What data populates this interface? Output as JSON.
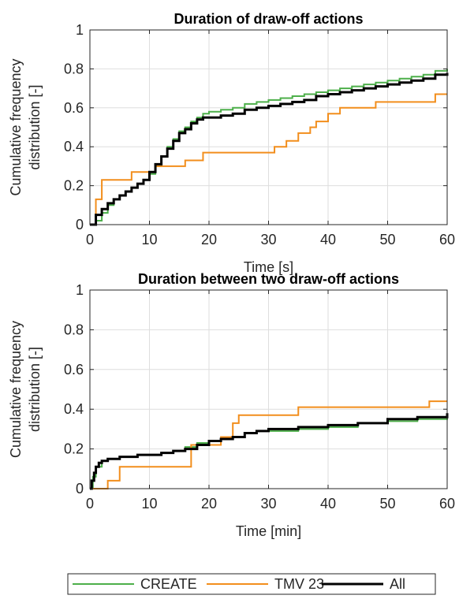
{
  "chart_data": [
    {
      "type": "line",
      "title": "Duration of draw-off actions",
      "xlabel": "Time [s]",
      "ylabel": "Cumulative frequency distribution [-]",
      "xlim": [
        0,
        60
      ],
      "ylim": [
        0,
        1
      ],
      "xticks": [
        "0",
        "10",
        "20",
        "30",
        "40",
        "50",
        "60"
      ],
      "yticks": [
        "0",
        "0.2",
        "0.4",
        "0.6",
        "0.8",
        "1"
      ],
      "grid": true,
      "series": [
        {
          "name": "CREATE",
          "color": "#4daf4a",
          "x": [
            0,
            1,
            2,
            3,
            4,
            5,
            6,
            7,
            8,
            9,
            10,
            11,
            12,
            13,
            14,
            15,
            16,
            17,
            18,
            19,
            20,
            22,
            24,
            26,
            28,
            30,
            32,
            34,
            36,
            38,
            40,
            42,
            44,
            46,
            48,
            50,
            52,
            54,
            56,
            58,
            60
          ],
          "y": [
            0,
            0.02,
            0.06,
            0.1,
            0.13,
            0.15,
            0.17,
            0.19,
            0.21,
            0.23,
            0.26,
            0.3,
            0.35,
            0.4,
            0.44,
            0.48,
            0.5,
            0.53,
            0.55,
            0.57,
            0.58,
            0.59,
            0.6,
            0.62,
            0.63,
            0.64,
            0.65,
            0.66,
            0.67,
            0.68,
            0.69,
            0.7,
            0.71,
            0.72,
            0.73,
            0.74,
            0.75,
            0.76,
            0.77,
            0.79,
            0.8
          ]
        },
        {
          "name": "TMV 23",
          "color": "#f28e1c",
          "x": [
            0,
            1,
            2,
            5,
            7,
            9,
            11,
            14,
            16,
            18,
            19,
            24,
            29,
            31,
            33,
            35,
            37,
            38,
            40,
            42,
            44,
            46,
            48,
            52,
            55,
            58,
            60
          ],
          "y": [
            0,
            0.13,
            0.23,
            0.23,
            0.27,
            0.27,
            0.3,
            0.3,
            0.33,
            0.33,
            0.37,
            0.37,
            0.37,
            0.4,
            0.43,
            0.47,
            0.5,
            0.53,
            0.57,
            0.6,
            0.6,
            0.6,
            0.63,
            0.63,
            0.63,
            0.67,
            0.67
          ]
        },
        {
          "name": "All",
          "color": "#000000",
          "x": [
            0,
            1,
            2,
            3,
            4,
            5,
            6,
            7,
            8,
            9,
            10,
            11,
            12,
            13,
            14,
            15,
            16,
            17,
            18,
            19,
            20,
            22,
            24,
            26,
            28,
            30,
            32,
            34,
            36,
            38,
            40,
            42,
            44,
            46,
            48,
            50,
            52,
            54,
            56,
            58,
            60
          ],
          "y": [
            0,
            0.05,
            0.08,
            0.11,
            0.13,
            0.15,
            0.17,
            0.19,
            0.21,
            0.23,
            0.27,
            0.31,
            0.35,
            0.39,
            0.43,
            0.47,
            0.49,
            0.52,
            0.54,
            0.55,
            0.55,
            0.56,
            0.57,
            0.59,
            0.6,
            0.61,
            0.62,
            0.63,
            0.64,
            0.66,
            0.67,
            0.68,
            0.69,
            0.7,
            0.71,
            0.72,
            0.73,
            0.74,
            0.75,
            0.77,
            0.78
          ]
        }
      ]
    },
    {
      "type": "line",
      "title": "Duration between two draw-off actions",
      "xlabel": "Time [min]",
      "ylabel": "Cumulative frequency distribution [-]",
      "xlim": [
        0,
        60
      ],
      "ylim": [
        0,
        1
      ],
      "xticks": [
        "0",
        "10",
        "20",
        "30",
        "40",
        "50",
        "60"
      ],
      "yticks": [
        "0",
        "0.2",
        "0.4",
        "0.6",
        "0.8",
        "1"
      ],
      "grid": true,
      "series": [
        {
          "name": "CREATE",
          "color": "#4daf4a",
          "x": [
            0,
            0.5,
            1,
            2,
            3,
            5,
            8,
            10,
            12,
            14,
            16,
            18,
            20,
            22,
            24,
            26,
            28,
            30,
            35,
            40,
            45,
            50,
            55,
            60
          ],
          "y": [
            0,
            0.06,
            0.11,
            0.14,
            0.15,
            0.16,
            0.17,
            0.17,
            0.18,
            0.19,
            0.21,
            0.23,
            0.24,
            0.25,
            0.26,
            0.28,
            0.29,
            0.29,
            0.3,
            0.31,
            0.33,
            0.34,
            0.35,
            0.37
          ]
        },
        {
          "name": "TMV 23",
          "color": "#f28e1c",
          "x": [
            0,
            2,
            3,
            4,
            5,
            16,
            17,
            20,
            22,
            24,
            25,
            30,
            35,
            40,
            45,
            50,
            56,
            57,
            60
          ],
          "y": [
            0,
            0,
            0.04,
            0.04,
            0.11,
            0.11,
            0.22,
            0.22,
            0.26,
            0.33,
            0.37,
            0.37,
            0.41,
            0.41,
            0.41,
            0.41,
            0.41,
            0.44,
            0.44
          ]
        },
        {
          "name": "All",
          "color": "#000000",
          "x": [
            0,
            0.3,
            0.7,
            1,
            1.5,
            2,
            3,
            5,
            8,
            10,
            12,
            14,
            16,
            18,
            20,
            22,
            24,
            26,
            28,
            30,
            35,
            40,
            45,
            50,
            55,
            60
          ],
          "y": [
            0,
            0.04,
            0.08,
            0.11,
            0.13,
            0.14,
            0.15,
            0.16,
            0.17,
            0.17,
            0.18,
            0.19,
            0.2,
            0.22,
            0.24,
            0.25,
            0.26,
            0.28,
            0.29,
            0.3,
            0.31,
            0.32,
            0.33,
            0.35,
            0.36,
            0.38
          ]
        }
      ]
    }
  ],
  "legend": {
    "items": [
      {
        "label": "CREATE",
        "color": "#4daf4a"
      },
      {
        "label": "TMV 23",
        "color": "#f28e1c"
      },
      {
        "label": "All",
        "color": "#000000"
      }
    ]
  },
  "ylabel_lines": [
    "Cumulative frequency",
    "distribution [-]"
  ]
}
